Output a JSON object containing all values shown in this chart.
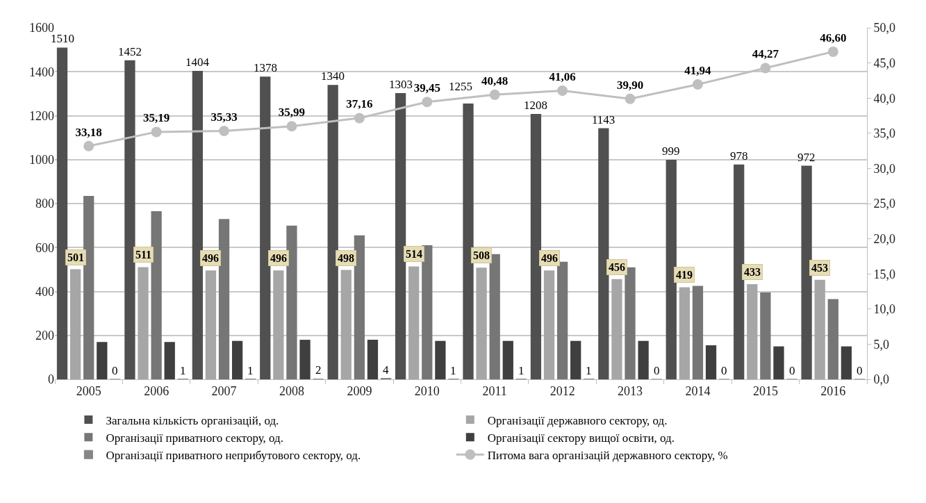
{
  "chart_data": {
    "type": "bar",
    "categories": [
      "2005",
      "2006",
      "2007",
      "2008",
      "2009",
      "2010",
      "2011",
      "2012",
      "2013",
      "2014",
      "2015",
      "2016"
    ],
    "series": [
      {
        "name": "Загальна кількість організацій, од.",
        "color": "#505050",
        "values": [
          1510,
          1452,
          1404,
          1378,
          1340,
          1303,
          1255,
          1208,
          1143,
          999,
          978,
          972
        ],
        "value_labels": [
          "1510",
          "1452",
          "1404",
          "1378",
          "1340",
          "1303",
          "1255",
          "1208",
          "1143",
          "999",
          "978",
          "972"
        ]
      },
      {
        "name": "Організації державного сектору, од.",
        "color": "#a6a6a6",
        "values": [
          501,
          511,
          496,
          496,
          498,
          514,
          508,
          496,
          456,
          419,
          433,
          453
        ],
        "value_labels": [
          "501",
          "511",
          "496",
          "496",
          "498",
          "514",
          "508",
          "496",
          "456",
          "419",
          "433",
          "453"
        ]
      },
      {
        "name": "Організації приватного сектору, од.",
        "color": "#767676",
        "values": [
          835,
          765,
          730,
          700,
          655,
          610,
          570,
          535,
          510,
          425,
          395,
          365
        ]
      },
      {
        "name": "Організації сектору вищої освіти, од.",
        "color": "#3f3f3f",
        "values": [
          170,
          170,
          175,
          180,
          180,
          175,
          175,
          175,
          175,
          155,
          150,
          150
        ]
      },
      {
        "name": "Організації приватного неприбутового сектору, од.",
        "color": "#868686",
        "values": [
          0,
          1,
          1,
          2,
          4,
          1,
          1,
          1,
          0,
          0,
          0,
          0
        ],
        "value_labels": [
          "0",
          "1",
          "1",
          "2",
          "4",
          "1",
          "1",
          "1",
          "0",
          "0",
          "0",
          "0"
        ]
      },
      {
        "name": "Питома вага організацій державного сектору, %",
        "type": "line",
        "axis": "y2",
        "color": "#bfbfbf",
        "marker": "circle",
        "values": [
          33.18,
          35.19,
          35.33,
          35.99,
          37.16,
          39.45,
          40.48,
          41.06,
          39.9,
          41.94,
          44.27,
          46.6
        ],
        "value_labels": [
          "33,18",
          "35,19",
          "35,33",
          "35,99",
          "37,16",
          "39,45",
          "40,48",
          "41,06",
          "39,90",
          "41,94",
          "44,27",
          "46,60"
        ]
      }
    ],
    "ylim": [
      0,
      1600
    ],
    "yticks": [
      0,
      200,
      400,
      600,
      800,
      1000,
      1200,
      1400,
      1600
    ],
    "y2lim": [
      0,
      50
    ],
    "y2ticks": [
      {
        "value": 0,
        "label": "0,0"
      },
      {
        "value": 5,
        "label": "5,0"
      },
      {
        "value": 10,
        "label": "10,0"
      },
      {
        "value": 15,
        "label": "15,0"
      },
      {
        "value": 20,
        "label": "20,0"
      },
      {
        "value": 25,
        "label": "25,0"
      },
      {
        "value": 30,
        "label": "30,0"
      },
      {
        "value": 35,
        "label": "35,0"
      },
      {
        "value": 40,
        "label": "40,0"
      },
      {
        "value": 45,
        "label": "45,0"
      },
      {
        "value": 50,
        "label": "50,0"
      }
    ],
    "grid": "y",
    "legend": "bottom"
  }
}
